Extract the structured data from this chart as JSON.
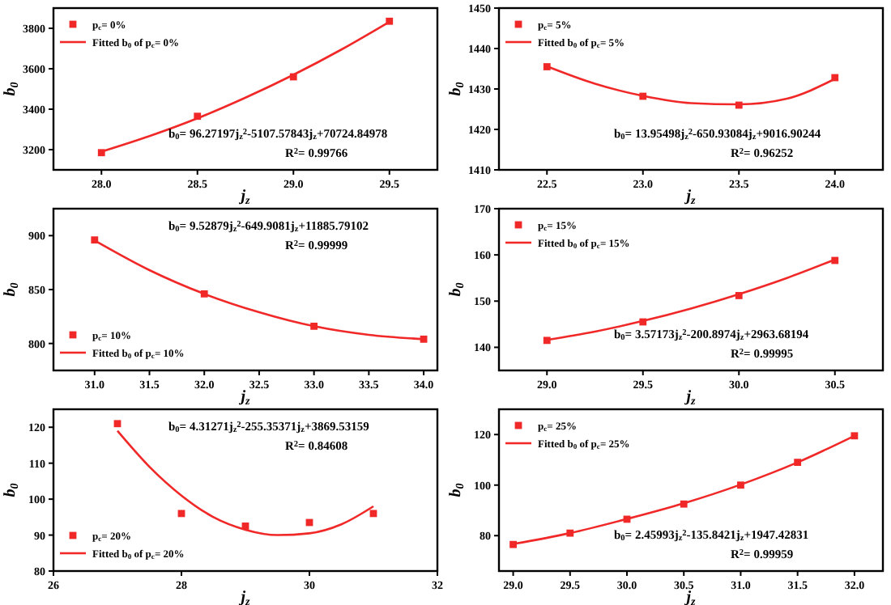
{
  "chart_data": [
    {
      "type": "scatter",
      "xlabel": "j$_{z}$",
      "ylabel": "b$_{0}$",
      "xlim": [
        27.75,
        29.75
      ],
      "ylim": [
        3100,
        3900
      ],
      "xticks": [
        {
          "value": 28,
          "label": "28.0"
        },
        {
          "value": 28.5,
          "label": "28.5"
        },
        {
          "value": 29,
          "label": "29.0"
        },
        {
          "value": 29.5,
          "label": "29.5"
        }
      ],
      "yticks": [
        3200,
        3400,
        3600,
        3800
      ],
      "legend": "top left",
      "marker": "square",
      "grid": false,
      "annotations": [
        "b$_{0}$= 96.27197j$_{z}$$^{2}$-5107.57843j$_{z}$+70724.84978",
        "R$^{2}$= 0.99766"
      ],
      "series": [
        {
          "name": "p$_{c}$= 0%",
          "color": "#f02828",
          "x": [
            28,
            28.5,
            29,
            29.5
          ],
          "values": [
            3185,
            3365,
            3560,
            3835
          ]
        },
        {
          "name": "Fitted b$_{0}$ of p$_{c}$= 0%",
          "type": "line",
          "marker": "none",
          "color": "#f02828",
          "x": [
            28,
            28.25,
            28.5,
            28.75,
            29,
            29.25,
            29.5
          ],
          "values": [
            3190,
            3267,
            3355,
            3457,
            3570,
            3695,
            3832
          ]
        }
      ]
    },
    {
      "type": "scatter",
      "xlabel": "j$_{z}$",
      "ylabel": "b$_{0}$",
      "xlim": [
        22.25,
        24.25
      ],
      "ylim": [
        1410,
        1450
      ],
      "xticks": [
        {
          "value": 22.5,
          "label": "22.5"
        },
        {
          "value": 23,
          "label": "23.0"
        },
        {
          "value": 23.5,
          "label": "23.5"
        },
        {
          "value": 24,
          "label": "24.0"
        }
      ],
      "yticks": [
        1410,
        1420,
        1430,
        1440,
        1450
      ],
      "legend": "top left",
      "marker": "square",
      "grid": false,
      "annotations": [
        "b$_{0}$= 13.95498j$_{z}$$^{2}$-650.93084j$_{z}$+9016.90244",
        "R$^{2}$= 0.96252"
      ],
      "series": [
        {
          "name": "p$_{c}$= 5%",
          "color": "#f02828",
          "x": [
            22.5,
            23,
            23.5,
            24
          ],
          "values": [
            1435.5,
            1428.2,
            1426,
            1432.8
          ]
        },
        {
          "name": "Fitted b$_{0}$ of p$_{c}$= 5%",
          "type": "line",
          "marker": "none",
          "color": "#f02828",
          "x": [
            22.5,
            22.75,
            23,
            23.25,
            23.5,
            23.75,
            24
          ],
          "values": [
            1435.6,
            1431.3,
            1428.3,
            1426.5,
            1426.2,
            1427.6,
            1432.5
          ]
        }
      ]
    },
    {
      "type": "scatter",
      "xlabel": "j$_{z}$",
      "ylabel": "b$_{0}$",
      "xlim": [
        30.625,
        34.125
      ],
      "ylim": [
        775,
        925
      ],
      "xticks": [
        {
          "value": 31,
          "label": "31.0"
        },
        {
          "value": 31.5,
          "label": "31.5"
        },
        {
          "value": 32,
          "label": "32.0"
        },
        {
          "value": 32.5,
          "label": "32.5"
        },
        {
          "value": 33,
          "label": "33.0"
        },
        {
          "value": 33.5,
          "label": "33.5"
        },
        {
          "value": 34,
          "label": "34.0"
        }
      ],
      "yticks": [
        800,
        850,
        900
      ],
      "legend": "bottom left",
      "marker": "square",
      "grid": false,
      "annotations": [
        "b$_{0}$= 9.52879j$_{z}$$^{2}$-649.9081j$_{z}$+11885.79102",
        "R$^{2}$= 0.99999"
      ],
      "series": [
        {
          "name": "p$_{c}$= 10%",
          "color": "#f02828",
          "x": [
            31,
            32,
            33,
            34
          ],
          "values": [
            896,
            846,
            816,
            804
          ]
        },
        {
          "name": "Fitted b$_{0}$ of p$_{c}$= 10%",
          "type": "line",
          "marker": "none",
          "color": "#f02828",
          "x": [
            31,
            31.5,
            32,
            32.5,
            33,
            33.5,
            34
          ],
          "values": [
            895.5,
            868,
            846,
            829,
            816,
            808,
            804
          ]
        }
      ]
    },
    {
      "type": "scatter",
      "xlabel": "j$_{z}$",
      "ylabel": "b$_{0}$",
      "xlim": [
        28.75,
        30.75
      ],
      "ylim": [
        135,
        170
      ],
      "xticks": [
        {
          "value": 29,
          "label": "29.0"
        },
        {
          "value": 29.5,
          "label": "29.5"
        },
        {
          "value": 30,
          "label": "30.0"
        },
        {
          "value": 30.5,
          "label": "30.5"
        }
      ],
      "yticks": [
        140,
        150,
        160,
        170
      ],
      "legend": "top left",
      "marker": "square",
      "grid": false,
      "annotations": [
        "b$_{0}$= 3.57173j$_{z}$$^{2}$-200.8974j$_{z}$+2963.68194",
        "R$^{2}$= 0.99995"
      ],
      "series": [
        {
          "name": "p$_{c}$= 15%",
          "color": "#f02828",
          "x": [
            29,
            29.5,
            30,
            30.5
          ],
          "values": [
            141.5,
            145.5,
            151.2,
            158.8
          ]
        },
        {
          "name": "Fitted b$_{0}$ of p$_{c}$= 15%",
          "type": "line",
          "marker": "none",
          "color": "#f02828",
          "x": [
            29,
            29.25,
            29.5,
            29.75,
            30,
            30.25,
            30.5
          ],
          "values": [
            141.6,
            143.4,
            145.7,
            148.4,
            151.5,
            155,
            159
          ]
        }
      ]
    },
    {
      "type": "scatter",
      "xlabel": "j$_{z}$",
      "ylabel": "b$_{0}$",
      "xlim": [
        26,
        32
      ],
      "ylim": [
        80,
        125
      ],
      "xticks": [
        26,
        28,
        30,
        32
      ],
      "yticks": [
        80,
        90,
        100,
        110,
        120
      ],
      "legend": "bottom left",
      "marker": "square",
      "grid": false,
      "annotations": [
        "b$_{0}$= 4.31271j$_{z}$$^{2}$-255.35371j$_{z}$+3869.53159",
        "R$^{2}$= 0.84608"
      ],
      "series": [
        {
          "name": "p$_{c}$= 20%",
          "color": "#f02828",
          "x": [
            27,
            28,
            29,
            30,
            31
          ],
          "values": [
            121,
            96,
            92.5,
            93.5,
            96
          ]
        },
        {
          "name": "Fitted b$_{0}$ of p$_{c}$= 20%",
          "type": "line",
          "marker": "none",
          "color": "#f02828",
          "x": [
            27,
            27.5,
            28,
            28.5,
            29,
            29.5,
            30,
            30.5,
            31
          ],
          "values": [
            119,
            109,
            101,
            95,
            91.5,
            90,
            90.5,
            93,
            98
          ]
        }
      ]
    },
    {
      "type": "scatter",
      "xlabel": "j$_{z}$",
      "ylabel": "b$_{0}$",
      "xlim": [
        28.875,
        32.25
      ],
      "ylim": [
        66,
        130
      ],
      "xticks": [
        {
          "value": 29,
          "label": "29.0"
        },
        {
          "value": 29.5,
          "label": "29.5"
        },
        {
          "value": 30,
          "label": "30.0"
        },
        {
          "value": 30.5,
          "label": "30.5"
        },
        {
          "value": 31,
          "label": "31.0"
        },
        {
          "value": 31.5,
          "label": "31.5"
        },
        {
          "value": 32,
          "label": "32.0"
        }
      ],
      "yticks": [
        80,
        100,
        120
      ],
      "legend": "top left",
      "marker": "square",
      "grid": false,
      "annotations": [
        "b$_{0}$= 2.45993j$_{z}$$^{2}$-135.8421j$_{z}$+1947.42831",
        "R$^{2}$= 0.99959"
      ],
      "series": [
        {
          "name": "p$_{c}$= 25%",
          "color": "#f02828",
          "x": [
            29,
            29.5,
            30,
            30.5,
            31,
            31.5,
            32
          ],
          "values": [
            76.5,
            81,
            86.5,
            92.5,
            100,
            109,
            119.5
          ]
        },
        {
          "name": "Fitted b$_{0}$ of p$_{c}$= 25%",
          "type": "line",
          "marker": "none",
          "color": "#f02828",
          "x": [
            29,
            29.5,
            30,
            30.5,
            31,
            31.5,
            32
          ],
          "values": [
            76.7,
            81,
            86.6,
            92.8,
            100.2,
            109,
            119.5
          ]
        }
      ]
    }
  ]
}
